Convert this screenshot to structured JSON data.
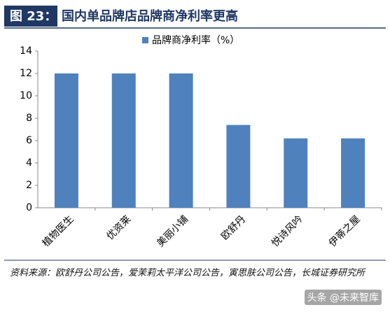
{
  "chart_data": {
    "type": "bar",
    "figure_label": "图 23：",
    "title": "国内单品牌店品牌商净利率更高",
    "categories": [
      "植物医生",
      "优资莱",
      "美丽小铺",
      "欧舒丹",
      "悦诗风吟",
      "伊蒂之屋"
    ],
    "series": [
      {
        "name": "品牌商净利率（%）",
        "color": "#4f81bd",
        "values": [
          12,
          12,
          12,
          7.4,
          6.2,
          6.2
        ]
      }
    ],
    "ylim": [
      0,
      14
    ],
    "yticks": [
      0,
      2,
      4,
      6,
      8,
      10,
      12,
      14
    ],
    "grid": false,
    "source": "资料来源：欧舒丹公司公告，爱茉莉太平洋公司公告，寅思肤公司公告，长城证券研究所",
    "watermark": "头条 @未来智库"
  }
}
